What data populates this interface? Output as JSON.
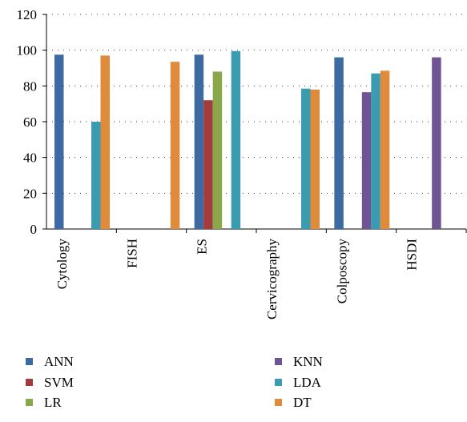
{
  "chart_data": {
    "type": "bar",
    "categories": [
      "Cytology",
      "FISH",
      "ES",
      "Cervicography",
      "Colposcopy",
      "HSDI"
    ],
    "series": [
      {
        "name": "ANN",
        "color": "#3d6aa0",
        "values": [
          97.5,
          null,
          97.5,
          null,
          96,
          null
        ]
      },
      {
        "name": "SVM",
        "color": "#a33d3d",
        "values": [
          null,
          null,
          72,
          null,
          null,
          null
        ]
      },
      {
        "name": "LR",
        "color": "#8aa84a",
        "values": [
          null,
          null,
          88,
          null,
          null,
          null
        ]
      },
      {
        "name": "KNN",
        "color": "#6e5493",
        "values": [
          null,
          null,
          null,
          null,
          76.5,
          96
        ]
      },
      {
        "name": "LDA",
        "color": "#3b9bb0",
        "values": [
          60,
          null,
          99.5,
          78.5,
          87,
          null
        ]
      },
      {
        "name": "DT",
        "color": "#e08a3c",
        "values": [
          97,
          93.5,
          null,
          78,
          88.5,
          null
        ]
      }
    ],
    "yticks": [
      0,
      20,
      40,
      60,
      80,
      100,
      120
    ],
    "ylim": [
      0,
      120
    ],
    "grid": "horizontal dotted",
    "legend_position": "bottom"
  }
}
